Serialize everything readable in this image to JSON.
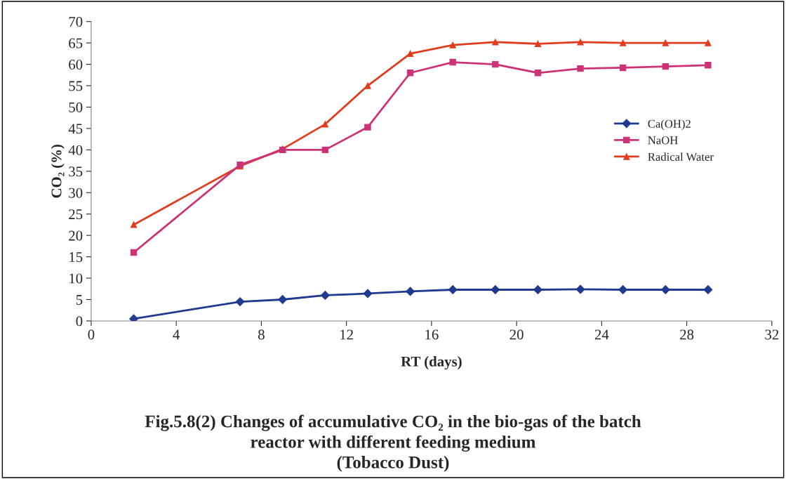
{
  "chart_data": {
    "type": "line",
    "title": "Fig.5.8(2) Changes of accumulative CO₂ in the bio-gas of the batch\nreactor with different feeding medium\n(Tobacco Dust)",
    "xlabel": "RT (days)",
    "ylabel": "CO₂ (%)",
    "x": [
      2,
      7,
      9,
      11,
      13,
      15,
      17,
      19,
      21,
      23,
      25,
      27,
      29
    ],
    "series": [
      {
        "name": "Ca(OH)2",
        "color": "#1f3a8f",
        "marker": "diamond",
        "values": [
          0.5,
          4.5,
          5,
          6,
          6.4,
          6.9,
          7.3,
          7.3,
          7.3,
          7.4,
          7.3,
          7.3,
          7.3
        ]
      },
      {
        "name": "NaOH",
        "color": "#cc3377",
        "marker": "square",
        "values": [
          16,
          36.5,
          40,
          40,
          45.3,
          58,
          60.5,
          60,
          58,
          59,
          59.2,
          59.5,
          59.8
        ]
      },
      {
        "name": "Radical Water",
        "color": "#e03c1e",
        "marker": "triangle",
        "values": [
          22.5,
          36.2,
          40.2,
          46,
          55,
          62.5,
          64.5,
          65.2,
          64.8,
          65.2,
          65,
          65,
          65
        ]
      }
    ],
    "xlim": [
      0,
      32
    ],
    "xticks": [
      0,
      4,
      8,
      12,
      16,
      20,
      24,
      28,
      32
    ],
    "ylim": [
      0,
      70
    ],
    "yticks": [
      0,
      5,
      10,
      15,
      20,
      25,
      30,
      35,
      40,
      45,
      50,
      55,
      60,
      65,
      70
    ],
    "grid": false,
    "legend": "right"
  }
}
